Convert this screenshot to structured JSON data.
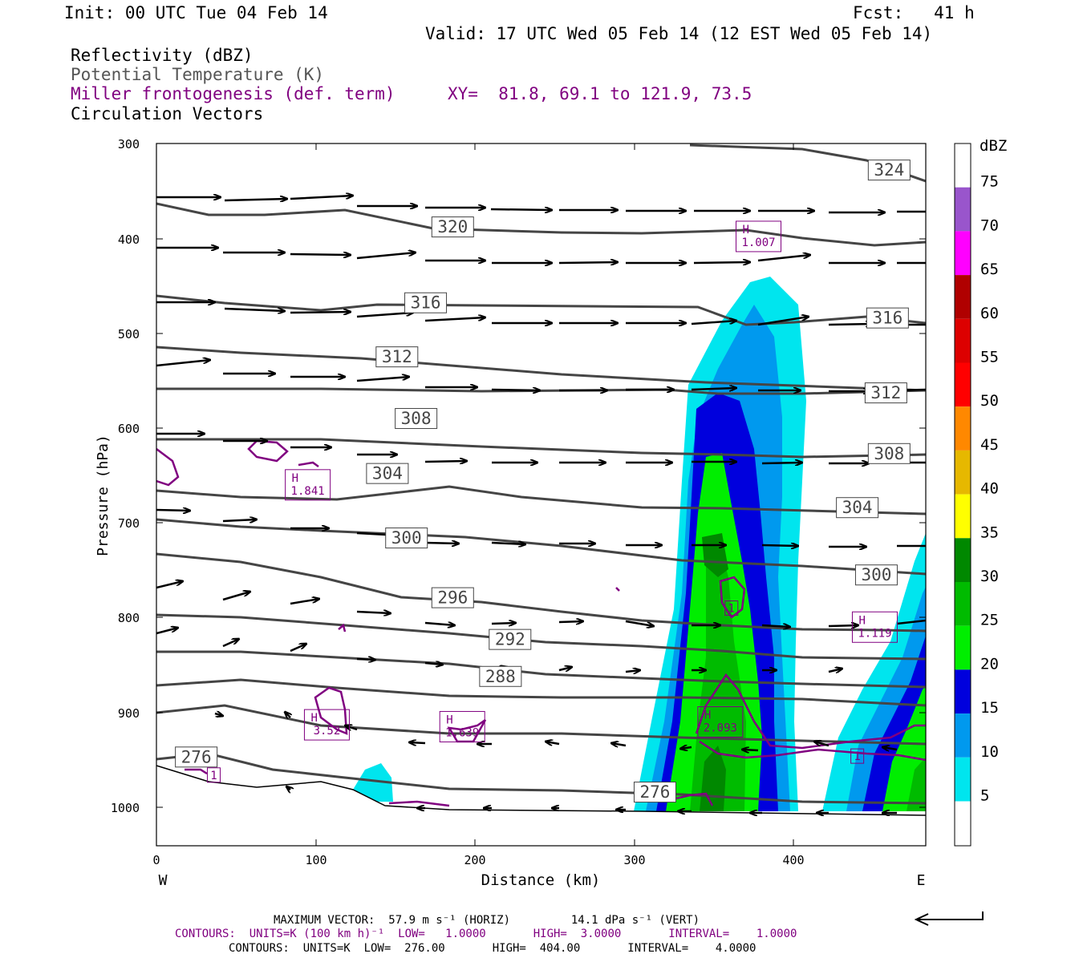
{
  "header": {
    "init": "Init: 00 UTC Tue 04 Feb 14",
    "fcst": "Fcst:   41 h",
    "valid": "Valid: 17 UTC Wed 05 Feb 14 (12 EST Wed 05 Feb 14)",
    "field1": "Reflectivity (dBZ)",
    "field2": "Potential Temperature (K)",
    "field3": "Miller frontogenesis (def. term)",
    "xy": "XY=  81.8, 69.1 to 121.9, 73.5",
    "field4": "Circulation Vectors"
  },
  "footer": {
    "max_vector": "MAXIMUM VECTOR:  57.9 m s⁻¹ (HORIZ)         14.1 dPa s⁻¹ (VERT)",
    "contours1": "CONTOURS:  UNITS=K (100 km h)⁻¹  LOW=   1.0000       HIGH=  3.0000       INTERVAL=    1.0000",
    "contours2": "CONTOURS:  UNITS=K  LOW=  276.00       HIGH=  404.00       INTERVAL=    4.0000"
  },
  "colors": {
    "theta": "#454545",
    "frontogenesis": "#800080",
    "vectors": "#000000",
    "axis": "#000000"
  },
  "chart_data": {
    "type": "cross-section",
    "xlabel": "Distance (km)",
    "ylabel": "Pressure (hPa)",
    "x_ticks": [
      "0",
      "100",
      "200",
      "300",
      "400"
    ],
    "y_ticks": [
      "300",
      "400",
      "500",
      "600",
      "700",
      "800",
      "900",
      "1000"
    ],
    "x_end_labels": [
      "W",
      "E"
    ],
    "xlim": [
      0,
      483
    ],
    "ylim": [
      1040,
      300
    ],
    "colorbar": {
      "title": "dBZ",
      "levels": [
        "75",
        "70",
        "65",
        "60",
        "55",
        "50",
        "45",
        "40",
        "35",
        "30",
        "25",
        "20",
        "15",
        "10",
        "5"
      ],
      "colors": [
        "#ffffff",
        "#9955cc",
        "#ff00ff",
        "#b00000",
        "#dd0000",
        "#ff0000",
        "#ff8800",
        "#e6b800",
        "#ffff00",
        "#008800",
        "#00bb00",
        "#00ee00",
        "#0000dd",
        "#0099ee",
        "#00e5ee"
      ]
    },
    "theta_labels": [
      {
        "text": "324",
        "x": 460,
        "p": 328
      },
      {
        "text": "320",
        "x": 186,
        "p": 388
      },
      {
        "text": "316",
        "x": 169,
        "p": 468
      },
      {
        "text": "316",
        "x": 459,
        "p": 484
      },
      {
        "text": "312",
        "x": 151,
        "p": 525
      },
      {
        "text": "312",
        "x": 458,
        "p": 563
      },
      {
        "text": "308",
        "x": 163,
        "p": 590
      },
      {
        "text": "308",
        "x": 460,
        "p": 627
      },
      {
        "text": "304",
        "x": 145,
        "p": 648
      },
      {
        "text": "304",
        "x": 440,
        "p": 684
      },
      {
        "text": "300",
        "x": 157,
        "p": 716
      },
      {
        "text": "300",
        "x": 452,
        "p": 755
      },
      {
        "text": "296",
        "x": 186,
        "p": 779
      },
      {
        "text": "292",
        "x": 222,
        "p": 823
      },
      {
        "text": "288",
        "x": 216,
        "p": 862
      },
      {
        "text": "276",
        "x": 25,
        "p": 947
      },
      {
        "text": "276",
        "x": 313,
        "p": 984
      }
    ],
    "frontogenesis_labels": [
      {
        "text": "H\n1.007",
        "x": 378,
        "p": 398
      },
      {
        "text": "H\n1.841",
        "x": 95,
        "p": 660
      },
      {
        "text": "1",
        "x": 361,
        "p": 790
      },
      {
        "text": "H\n1.119",
        "x": 451,
        "p": 810
      },
      {
        "text": "H\n3.52",
        "x": 107,
        "p": 913
      },
      {
        "text": "H\n1.639",
        "x": 192,
        "p": 915
      },
      {
        "text": "H\n2.093",
        "x": 354,
        "p": 910
      },
      {
        "text": "1",
        "x": 440,
        "p": 946
      },
      {
        "text": "1",
        "x": 36,
        "p": 966
      }
    ]
  }
}
